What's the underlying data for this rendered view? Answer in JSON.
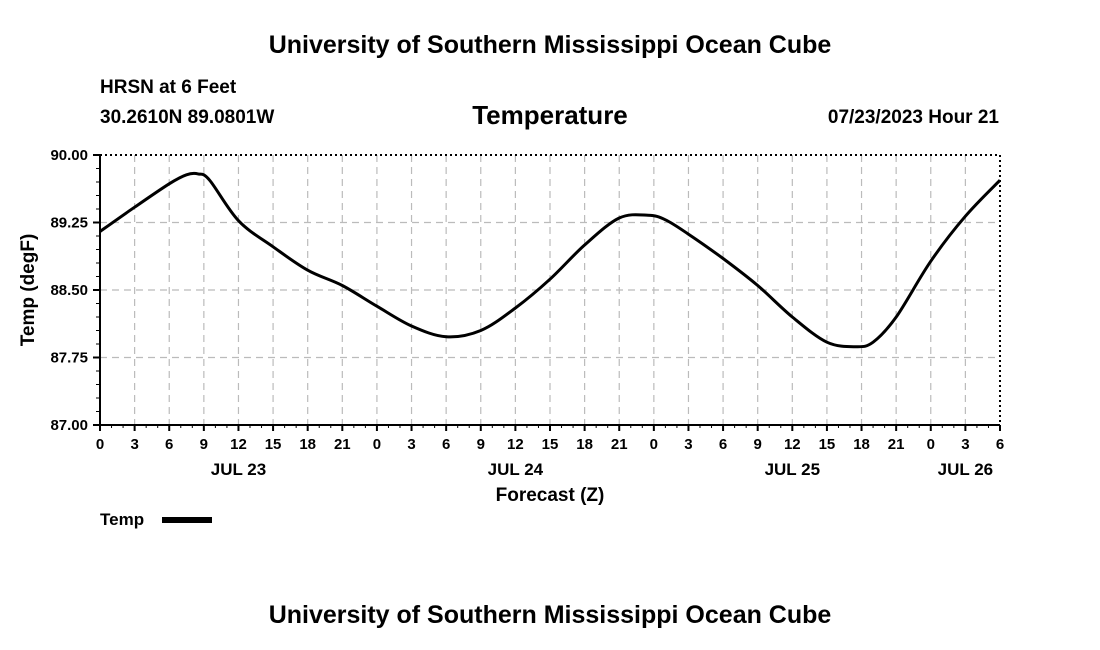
{
  "header": {
    "title": "University of Southern Mississippi Ocean Cube",
    "station": "HRSN at 6 Feet",
    "coords": "30.2610N  89.0801W",
    "datetime": "07/23/2023 Hour 21"
  },
  "footer": {
    "title": "University of Southern Mississippi Ocean Cube"
  },
  "colors": {
    "line": "#000000",
    "grid": "#bbbbbb"
  },
  "chart_data": {
    "type": "line",
    "title": "Temperature",
    "xlabel": "Forecast (Z)",
    "ylabel": "Temp (degF)",
    "ylim": [
      87.0,
      90.0
    ],
    "yticks": [
      "87.00",
      "87.75",
      "88.50",
      "89.25",
      "90.00"
    ],
    "xlim": [
      0,
      78
    ],
    "xticks": [
      "0",
      "3",
      "6",
      "9",
      "12",
      "15",
      "18",
      "21",
      "0",
      "3",
      "6",
      "9",
      "12",
      "15",
      "18",
      "21",
      "0",
      "3",
      "6",
      "9",
      "12",
      "15",
      "18",
      "21",
      "0",
      "3",
      "6"
    ],
    "date_labels": [
      {
        "label": "JUL 23",
        "x": 12
      },
      {
        "label": "JUL 24",
        "x": 36
      },
      {
        "label": "JUL 25",
        "x": 60
      },
      {
        "label": "JUL 26",
        "x": 75
      }
    ],
    "legend": [
      {
        "name": "Temp"
      }
    ],
    "grid": true,
    "series": [
      {
        "name": "Temp",
        "x": [
          0,
          3,
          6,
          7.5,
          8.5,
          9.5,
          12,
          15,
          18,
          21,
          24,
          27,
          30,
          33,
          36,
          39,
          42,
          45,
          47.5,
          49,
          51,
          54,
          57,
          60,
          63,
          65.5,
          67,
          69,
          72,
          75,
          78
        ],
        "values": [
          89.15,
          89.42,
          89.68,
          89.78,
          89.79,
          89.72,
          89.27,
          88.98,
          88.72,
          88.55,
          88.32,
          88.1,
          87.98,
          88.05,
          88.3,
          88.62,
          89.0,
          89.3,
          89.33,
          89.28,
          89.12,
          88.85,
          88.55,
          88.2,
          87.92,
          87.87,
          87.92,
          88.2,
          88.82,
          89.32,
          89.72
        ]
      }
    ]
  }
}
